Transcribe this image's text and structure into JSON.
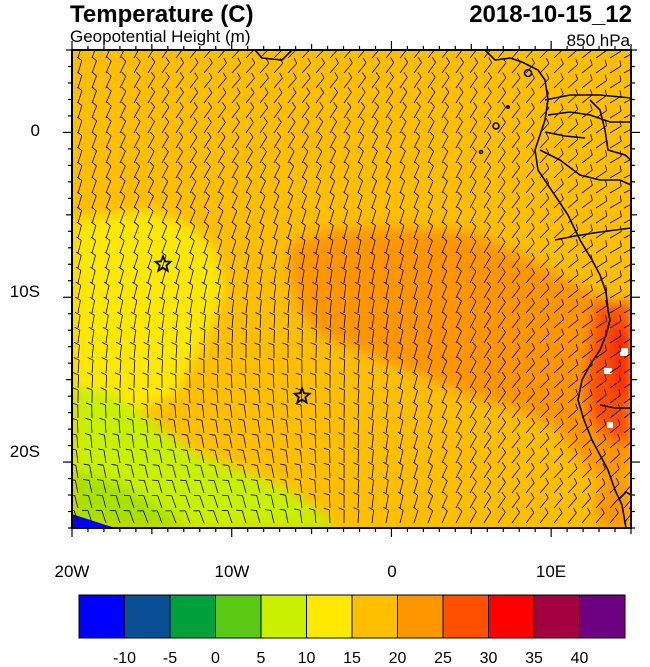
{
  "header": {
    "title": "Temperature (C)",
    "subtitle": "Geopotential Height (m)",
    "datetime": "2018-10-15_12",
    "level": "850 hPa"
  },
  "map": {
    "extent": {
      "lon": [
        -20,
        15
      ],
      "lat": [
        -24,
        5
      ]
    },
    "lon_ticks": [
      {
        "value": -20,
        "label": "20W"
      },
      {
        "value": -10,
        "label": "10W"
      },
      {
        "value": 0,
        "label": "0"
      },
      {
        "value": 10,
        "label": "10E"
      }
    ],
    "lat_ticks": [
      {
        "value": 0,
        "label": "0"
      },
      {
        "value": -10,
        "label": "10S"
      },
      {
        "value": -20,
        "label": "20S"
      }
    ],
    "markers": [
      {
        "name": "star",
        "lon": -14.3,
        "lat": -8.0
      },
      {
        "name": "star",
        "lon": -5.6,
        "lat": -16.0
      }
    ]
  },
  "colorbar": {
    "colors": [
      "#0000ff",
      "#0a4f96",
      "#00a03c",
      "#5ac814",
      "#c8f000",
      "#ffe800",
      "#ffbe00",
      "#ff9600",
      "#ff5000",
      "#ff0000",
      "#a50040",
      "#6e0082"
    ],
    "labels": [
      "-10",
      "-5",
      "0",
      "5",
      "10",
      "15",
      "20",
      "25",
      "30",
      "35",
      "40"
    ]
  }
}
